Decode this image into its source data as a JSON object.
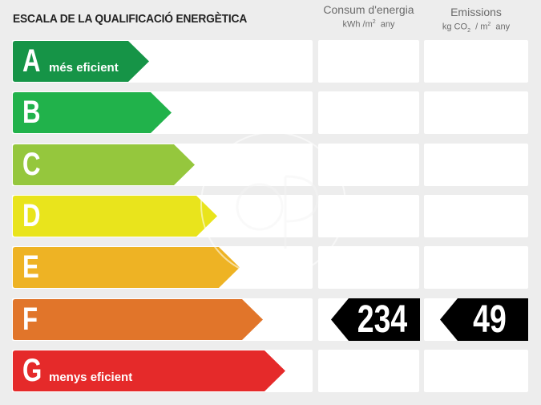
{
  "header": {
    "title": "ESCALA DE LA QUALIFICACIÓ ENERGÈTICA",
    "consum": {
      "title": "Consum d'energia",
      "unit_pre": "kWh /m",
      "unit_sup": "2",
      "unit_post": "  any"
    },
    "emissions": {
      "title": "Emissions",
      "unit_pre": "kg CO",
      "unit_sub": "2",
      "unit_mid": "  / m",
      "unit_sup": "2",
      "unit_post": "  any"
    }
  },
  "classes": [
    {
      "letter": "A",
      "description": "més eficient",
      "color": "#169447"
    },
    {
      "letter": "B",
      "description": "",
      "color": "#21b24b"
    },
    {
      "letter": "C",
      "description": "",
      "color": "#95c73d"
    },
    {
      "letter": "D",
      "description": "",
      "color": "#e9e41c"
    },
    {
      "letter": "E",
      "description": "",
      "color": "#eeb324"
    },
    {
      "letter": "F",
      "description": "",
      "color": "#e1752a"
    },
    {
      "letter": "G",
      "description": "menys eficient",
      "color": "#e52a2a"
    }
  ],
  "rating": {
    "class": "F",
    "consum_value": "234",
    "emissions_value": "49",
    "color": "#000000"
  }
}
